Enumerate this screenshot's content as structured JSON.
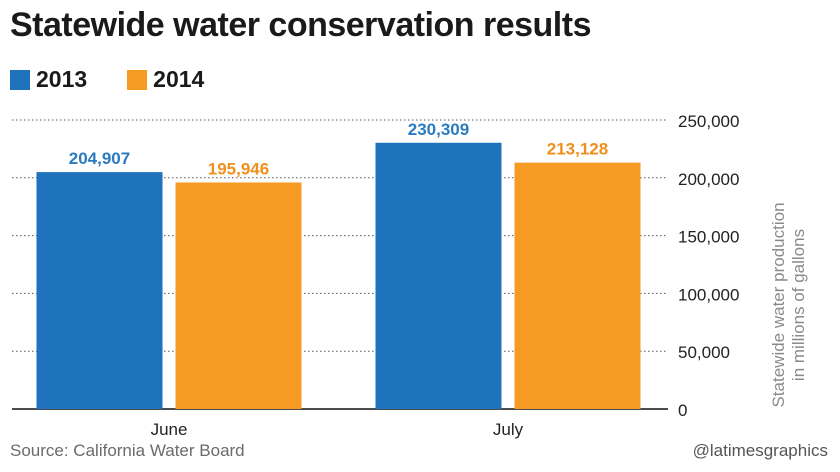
{
  "header": {
    "title": "Statewide water conservation results"
  },
  "footer": {
    "source": "Source: California Water Board",
    "credit": "@latimesgraphics"
  },
  "chart_data": {
    "type": "bar",
    "categories": [
      "June",
      "July"
    ],
    "series": [
      {
        "name": "2013",
        "values": [
          204907,
          230309
        ],
        "color": "#1f72bc",
        "label_color": "#2b7bc0"
      },
      {
        "name": "2014",
        "values": [
          195946,
          213128
        ],
        "color": "#f59a23",
        "label_color": "#f08f1c"
      }
    ],
    "data_labels": [
      [
        "204,907",
        "230,309"
      ],
      [
        "195,946",
        "213,128"
      ]
    ],
    "ylabel": "Statewide water production in millions of gallons",
    "ylabel_lines": [
      "Statewide water production",
      "in millions of gallons"
    ],
    "ylim": [
      0,
      250000
    ],
    "yticks": [
      0,
      50000,
      100000,
      150000,
      200000,
      250000
    ],
    "ytick_labels": [
      "0",
      "50,000",
      "100,000",
      "150,000",
      "200,000",
      "250,000"
    ],
    "y_axis_side": "right",
    "grid": "dotted horizontal",
    "legend_position": "top-left"
  }
}
